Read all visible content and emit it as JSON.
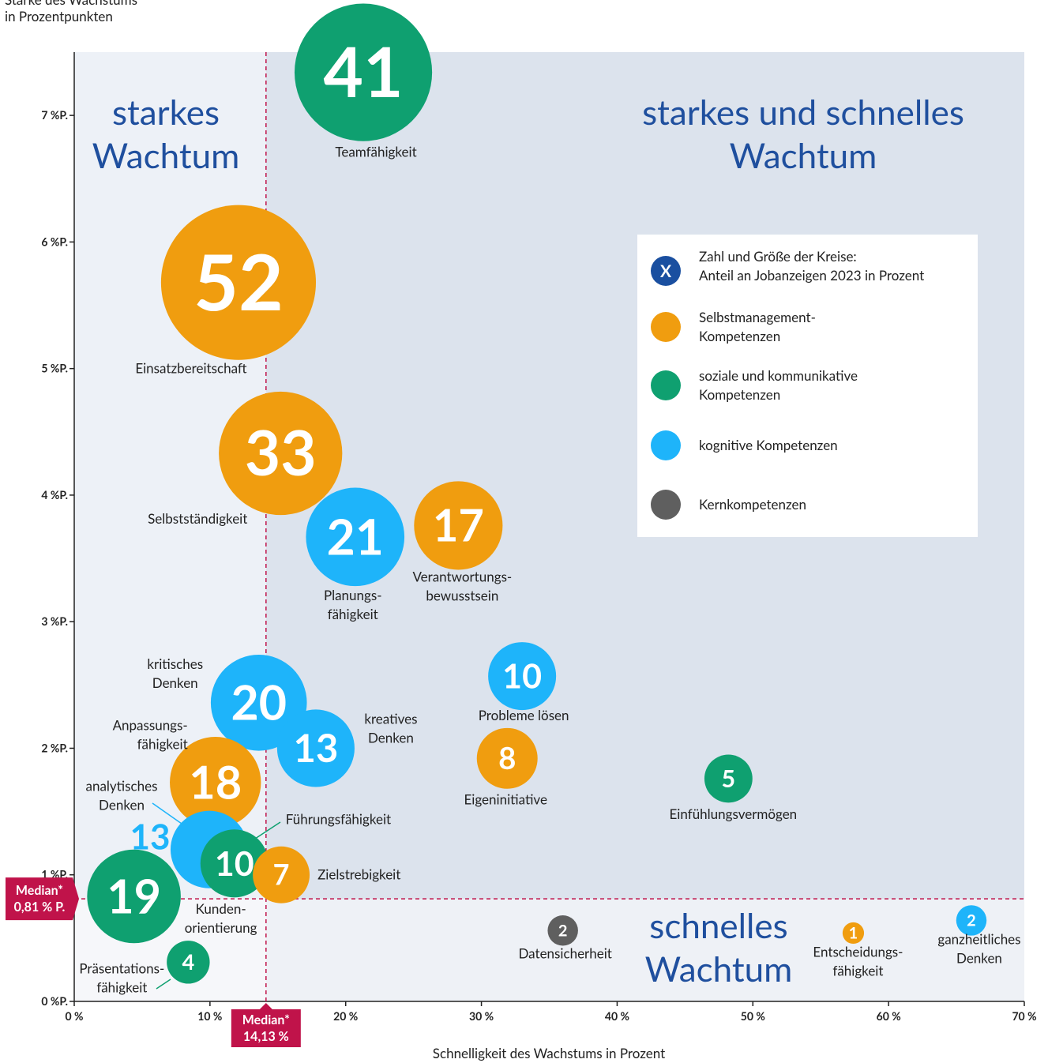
{
  "chart_data": {
    "type": "bubble",
    "y_axis_label": [
      "Stärke des Wachstums",
      "in Prozentpunkten"
    ],
    "x_axis_label": "Schnelligkeit des Wachstums in Prozent",
    "xlim": [
      0,
      70
    ],
    "ylim": [
      0,
      7.5
    ],
    "xticks": [
      {
        "value": 0,
        "label": "0 %"
      },
      {
        "value": 10,
        "label": "10 %"
      },
      {
        "value": 20,
        "label": "20 %"
      },
      {
        "value": 30,
        "label": "30 %"
      },
      {
        "value": 40,
        "label": "40 %"
      },
      {
        "value": 50,
        "label": "50 %"
      },
      {
        "value": 60,
        "label": "60 %"
      },
      {
        "value": 70,
        "label": "70 %"
      }
    ],
    "yticks": [
      {
        "value": 0,
        "label": "0 %P."
      },
      {
        "value": 1,
        "label": "1 %P."
      },
      {
        "value": 2,
        "label": "2 %P."
      },
      {
        "value": 3,
        "label": "3 %P."
      },
      {
        "value": 4,
        "label": "4 %P."
      },
      {
        "value": 5,
        "label": "5 %P."
      },
      {
        "value": 6,
        "label": "6 %P."
      },
      {
        "value": 7,
        "label": "7 %P."
      }
    ],
    "medians": {
      "x": 14.13,
      "x_label": [
        "Median*",
        "14,13 %"
      ],
      "y": 0.81,
      "y_label": [
        "Median*",
        "0,81 % P."
      ],
      "color": "#c0134a"
    },
    "quadrants": {
      "top_left": [
        "starkes",
        "Wachtum"
      ],
      "top_right": [
        "starkes und schnelles",
        "Wachtum"
      ],
      "bottom_right": [
        "schnelles",
        "Wachtum"
      ]
    },
    "size_legend": {
      "symbol": "X",
      "text": [
        "Zahl und Größe der Kreise:",
        "Anteil an Jobanzeigen 2023 in Prozent"
      ],
      "color": "#1a4fa0"
    },
    "series": [
      {
        "name": "Selbstmanagement-Kompetenzen",
        "color": "#f09d0f",
        "x": [
          12.1,
          15.2,
          28.3,
          31.9,
          10.4,
          15.25,
          57.4
        ],
        "y": [
          5.68,
          4.33,
          3.76,
          1.92,
          1.73,
          1.0,
          0.54
        ],
        "size": [
          52,
          33,
          17,
          8,
          18,
          7,
          1
        ],
        "labels": [
          [
            "Einsatzbereitschaft"
          ],
          [
            "Selbstständigkeit"
          ],
          [
            "Verantwortungs-",
            "bewusstsein"
          ],
          [
            "Eigeninitiative"
          ],
          [
            "Anpassungs-",
            "fähigkeit"
          ],
          [
            "Zielstrebigkeit"
          ],
          [
            "Entscheidungs-",
            "fähigkeit"
          ]
        ]
      },
      {
        "name": "soziale und kommunikative Kompetenzen",
        "color": "#0fa070",
        "x": [
          21.3,
          48.2,
          11.8,
          4.4,
          8.4
        ],
        "y": [
          7.34,
          1.76,
          1.09,
          0.83,
          0.31
        ],
        "size": [
          41,
          5,
          10,
          19,
          4
        ],
        "labels": [
          [
            "Teamfähigkeit"
          ],
          [
            "Einfühlungsvermögen"
          ],
          [
            "Führungsfähigkeit"
          ],
          [
            "Kunden-",
            "orientierung"
          ],
          [
            "Präsentations-",
            "fähigkeit"
          ]
        ]
      },
      {
        "name": "kognitive Kompetenzen",
        "color": "#1eb4fa",
        "x": [
          20.7,
          33.0,
          13.6,
          17.8,
          9.95,
          66.1
        ],
        "y": [
          3.67,
          2.57,
          2.36,
          2.0,
          1.2,
          0.64
        ],
        "size": [
          21,
          10,
          20,
          13,
          13,
          2
        ],
        "labels": [
          [
            "Planungs-",
            "fähigkeit"
          ],
          [
            "Probleme lösen"
          ],
          [
            "kritisches",
            "Denken"
          ],
          [
            "kreatives",
            "Denken"
          ],
          [
            "analytisches",
            "Denken"
          ],
          [
            "ganzheitliches",
            "Denken"
          ]
        ]
      },
      {
        "name": "Kernkompetenzen",
        "color": "#5f5f5f",
        "x": [
          36.0
        ],
        "y": [
          0.56
        ],
        "size": [
          2
        ],
        "labels": [
          [
            "Datensicherheit"
          ]
        ]
      }
    ]
  }
}
